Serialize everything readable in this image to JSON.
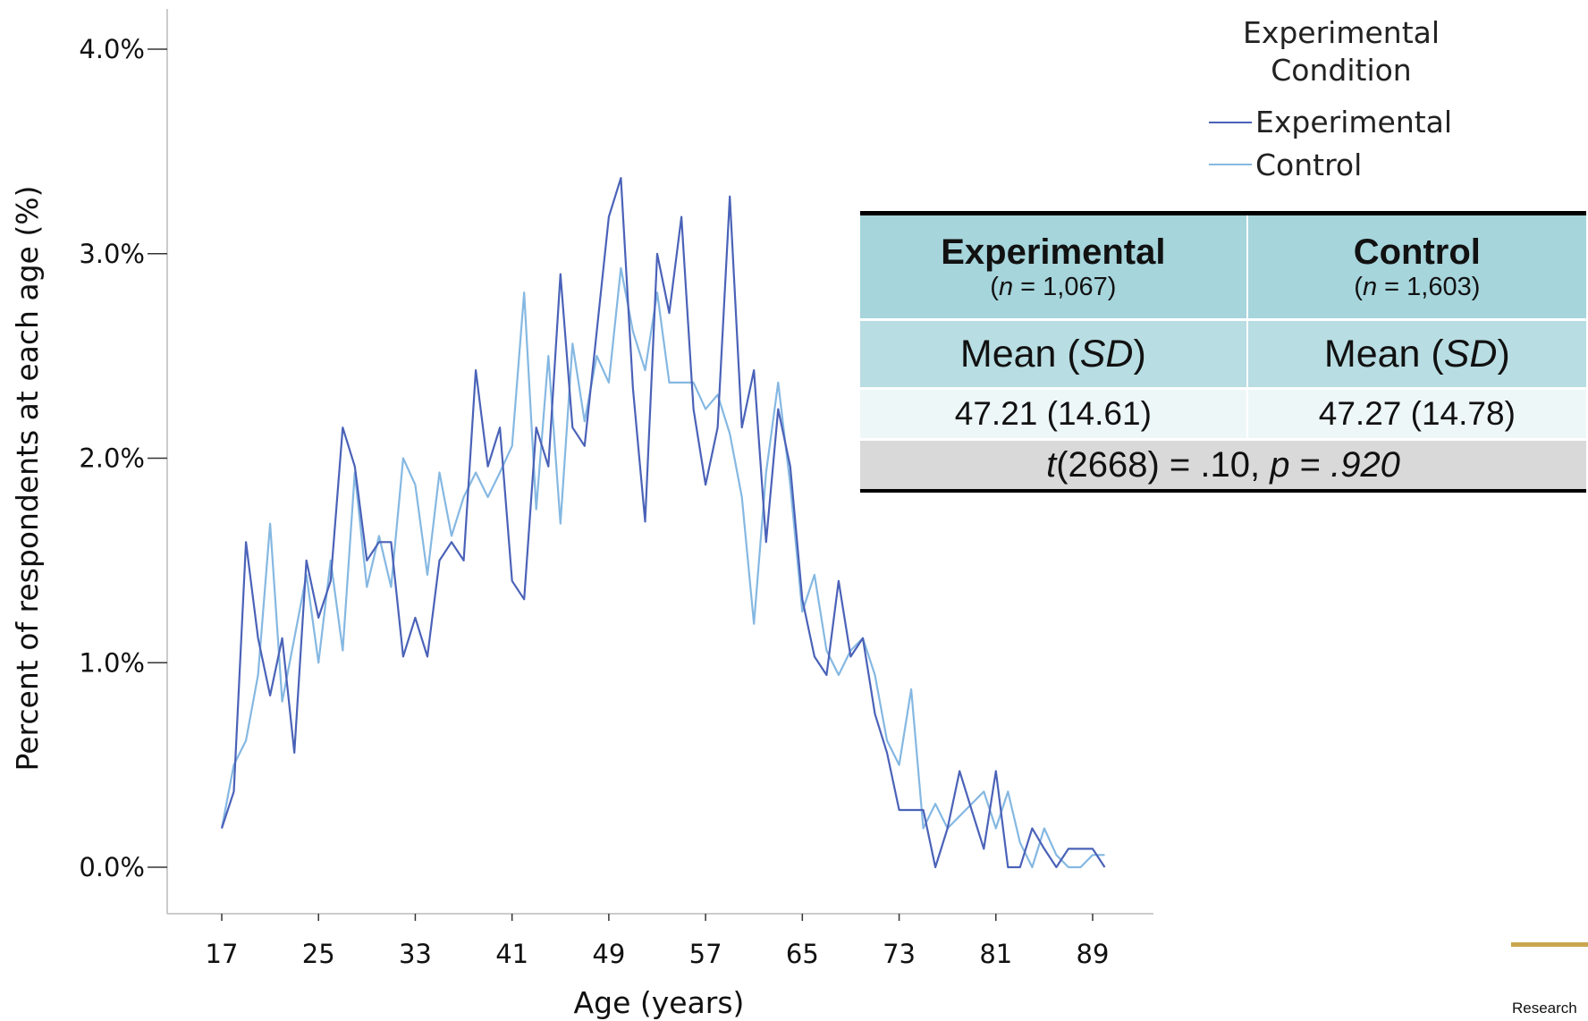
{
  "chart_data": {
    "type": "line",
    "xlabel": "Age (years)",
    "ylabel": "Percent of respondents at each age (%)",
    "xlim": [
      17,
      90
    ],
    "ylim": [
      0.0,
      4.0
    ],
    "x_ticks": [
      17,
      25,
      33,
      41,
      49,
      57,
      65,
      73,
      81,
      89
    ],
    "y_ticks": [
      "0.0%",
      "1.0%",
      "2.0%",
      "3.0%",
      "4.0%"
    ],
    "y_tick_values": [
      0,
      1,
      2,
      3,
      4
    ],
    "legend": {
      "title": "Experimental Condition",
      "title_lines": [
        "Experimental",
        "Condition"
      ],
      "placement": "top-right"
    },
    "x": [
      17,
      18,
      19,
      20,
      21,
      22,
      23,
      24,
      25,
      26,
      27,
      28,
      29,
      30,
      31,
      32,
      33,
      34,
      35,
      36,
      37,
      38,
      39,
      40,
      41,
      42,
      43,
      44,
      45,
      46,
      47,
      48,
      49,
      50,
      51,
      52,
      53,
      54,
      55,
      56,
      57,
      58,
      59,
      60,
      61,
      62,
      63,
      64,
      65,
      66,
      67,
      68,
      69,
      70,
      71,
      72,
      73,
      74,
      75,
      76,
      77,
      78,
      79,
      80,
      81,
      82,
      83,
      84,
      85,
      86,
      87,
      88,
      89,
      90
    ],
    "series": [
      {
        "name": "Experimental",
        "color": "#4a62b8",
        "values": [
          0.19,
          0.37,
          1.59,
          1.12,
          0.84,
          1.12,
          0.56,
          1.5,
          1.22,
          1.4,
          2.15,
          1.96,
          1.5,
          1.59,
          1.59,
          1.03,
          1.22,
          1.03,
          1.5,
          1.59,
          1.5,
          2.43,
          1.96,
          2.15,
          1.4,
          1.31,
          2.15,
          1.96,
          2.9,
          2.15,
          2.06,
          2.62,
          3.18,
          3.37,
          2.34,
          1.69,
          3.0,
          2.71,
          3.18,
          2.24,
          1.87,
          2.15,
          3.28,
          2.15,
          2.43,
          1.59,
          2.24,
          1.96,
          1.31,
          1.03,
          0.94,
          1.4,
          1.03,
          1.12,
          0.75,
          0.56,
          0.28,
          0.28,
          0.28,
          0.0,
          0.19,
          0.47,
          0.28,
          0.09,
          0.47,
          0.0,
          0.0,
          0.19,
          0.09,
          0.0,
          0.09,
          0.09,
          0.09,
          0.0
        ]
      },
      {
        "name": "Control",
        "color": "#85b8e2",
        "values": [
          0.19,
          0.5,
          0.62,
          0.94,
          1.68,
          0.81,
          1.12,
          1.43,
          1.0,
          1.5,
          1.06,
          1.93,
          1.37,
          1.62,
          1.37,
          2.0,
          1.87,
          1.43,
          1.93,
          1.62,
          1.81,
          1.93,
          1.81,
          1.93,
          2.06,
          2.81,
          1.75,
          2.5,
          1.68,
          2.56,
          2.18,
          2.5,
          2.37,
          2.93,
          2.62,
          2.43,
          2.81,
          2.37,
          2.37,
          2.37,
          2.24,
          2.31,
          2.12,
          1.81,
          1.19,
          1.93,
          2.37,
          1.87,
          1.25,
          1.43,
          1.06,
          0.94,
          1.06,
          1.12,
          0.94,
          0.62,
          0.5,
          0.87,
          0.19,
          0.31,
          0.19,
          0.25,
          0.31,
          0.37,
          0.19,
          0.37,
          0.12,
          0.0,
          0.19,
          0.06,
          0.0,
          0.0,
          0.06,
          0.06
        ]
      }
    ]
  },
  "table": {
    "experimental": {
      "name": "Experimental",
      "n_prefix": "(",
      "n_var": "n",
      "n_rest": " = 1,067)"
    },
    "control": {
      "name": "Control",
      "n_prefix": "(",
      "n_var": "n",
      "n_rest": " = 1,603)"
    },
    "stat_label": {
      "pre": "Mean (",
      "var": "SD",
      "post": ")"
    },
    "experimental_value": "47.21 (14.61)",
    "control_value": "47.27 (14.78)",
    "test": {
      "t": "t",
      "df_val": "(2668) = .10, ",
      "p": "p",
      "eq": " = ",
      "pval": ".920"
    }
  },
  "footer": {
    "text": "Research"
  },
  "colors": {
    "logo_bar": "#c9a64e",
    "table_header": "#a6d5dc",
    "table_subheader": "#b8dde2",
    "table_test_row": "#d9d9d9"
  }
}
